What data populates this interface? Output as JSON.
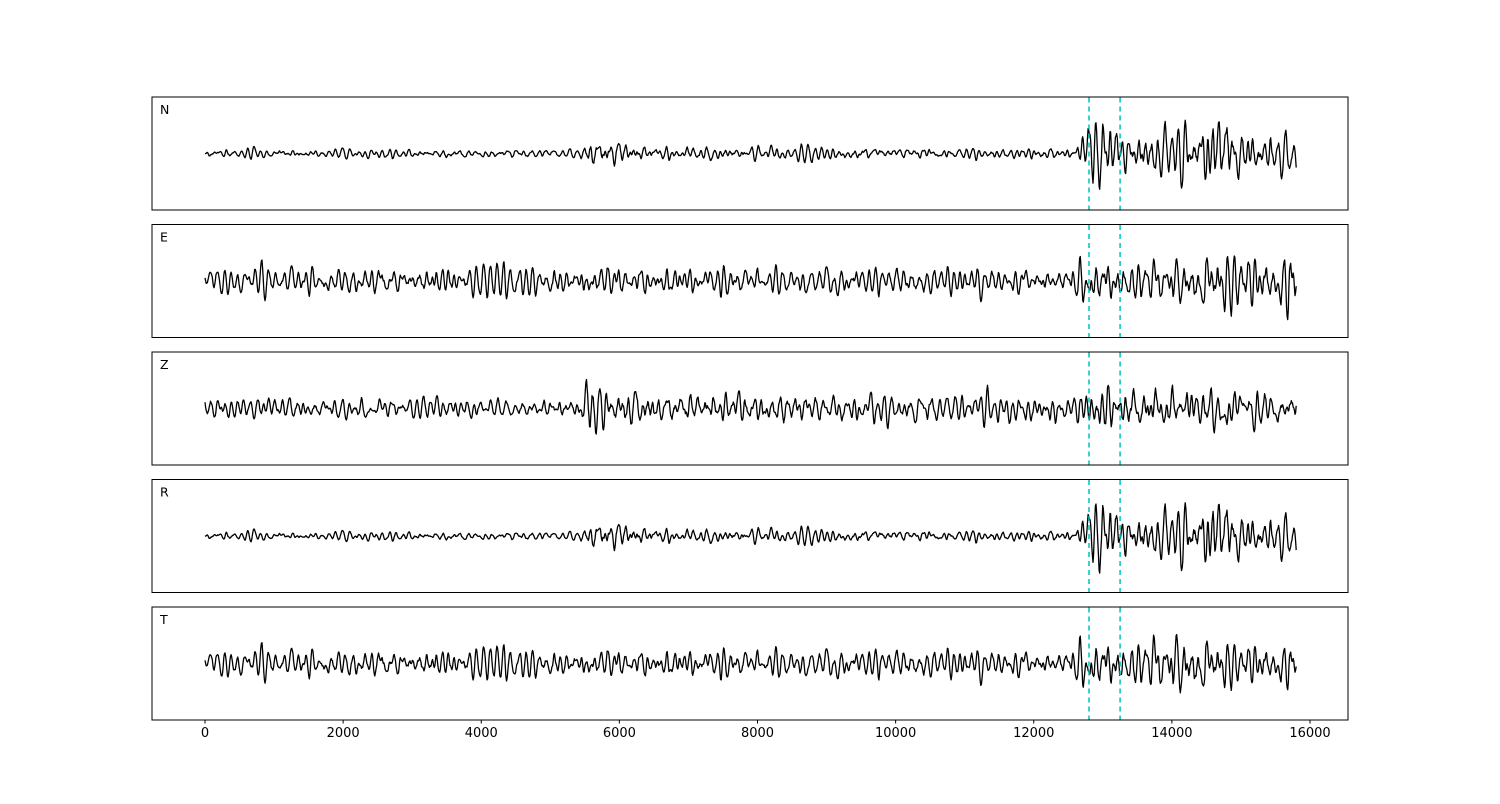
{
  "figure": {
    "background": "#ffffff",
    "axes_color": "#000000",
    "trace_color": "#000000",
    "marker_color": "#00bfbf",
    "tick_label_color": "#000000"
  },
  "chart_data": {
    "type": "line",
    "title": "",
    "xlabel": "",
    "ylabel": "",
    "grid": false,
    "legend": false,
    "x_ticks": [
      0,
      2000,
      4000,
      6000,
      8000,
      10000,
      12000,
      14000,
      16000
    ],
    "x_range": [
      -800,
      16600
    ],
    "trace_x_start": 0,
    "trace_x_end": 15800,
    "event_markers": [
      12800,
      13250
    ],
    "event_marker_style": "dashed",
    "panels": [
      {
        "label": "N",
        "seed": 101,
        "envelope": [
          [
            0,
            0.1
          ],
          [
            5400,
            0.1
          ],
          [
            5600,
            0.36
          ],
          [
            6500,
            0.16
          ],
          [
            12600,
            0.13
          ],
          [
            12850,
            0.9
          ],
          [
            13400,
            0.5
          ],
          [
            14000,
            0.55
          ],
          [
            14700,
            0.95
          ],
          [
            15200,
            0.5
          ],
          [
            15800,
            0.55
          ]
        ]
      },
      {
        "label": "E",
        "seed": 202,
        "envelope": [
          [
            0,
            0.3
          ],
          [
            3000,
            0.32
          ],
          [
            6000,
            0.35
          ],
          [
            9000,
            0.33
          ],
          [
            12400,
            0.3
          ],
          [
            12900,
            0.75
          ],
          [
            13600,
            0.5
          ],
          [
            14700,
            0.85
          ],
          [
            15500,
            0.6
          ],
          [
            15800,
            0.85
          ]
        ]
      },
      {
        "label": "Z",
        "seed": 303,
        "envelope": [
          [
            0,
            0.22
          ],
          [
            5450,
            0.22
          ],
          [
            5560,
            0.95
          ],
          [
            5750,
            0.5
          ],
          [
            7000,
            0.42
          ],
          [
            9000,
            0.34
          ],
          [
            12600,
            0.3
          ],
          [
            12900,
            0.55
          ],
          [
            14000,
            0.5
          ],
          [
            15800,
            0.45
          ]
        ]
      },
      {
        "label": "R",
        "seed": 101,
        "envelope": [
          [
            0,
            0.1
          ],
          [
            5400,
            0.1
          ],
          [
            5650,
            0.4
          ],
          [
            6600,
            0.17
          ],
          [
            12600,
            0.13
          ],
          [
            12900,
            0.9
          ],
          [
            13400,
            0.5
          ],
          [
            14000,
            0.55
          ],
          [
            14700,
            0.95
          ],
          [
            15200,
            0.5
          ],
          [
            15800,
            0.55
          ]
        ]
      },
      {
        "label": "T",
        "seed": 202,
        "envelope": [
          [
            0,
            0.3
          ],
          [
            5000,
            0.33
          ],
          [
            8000,
            0.35
          ],
          [
            12400,
            0.32
          ],
          [
            12900,
            0.85
          ],
          [
            13500,
            0.6
          ],
          [
            14200,
            0.9
          ],
          [
            15000,
            0.55
          ],
          [
            15800,
            0.5
          ]
        ]
      }
    ]
  }
}
